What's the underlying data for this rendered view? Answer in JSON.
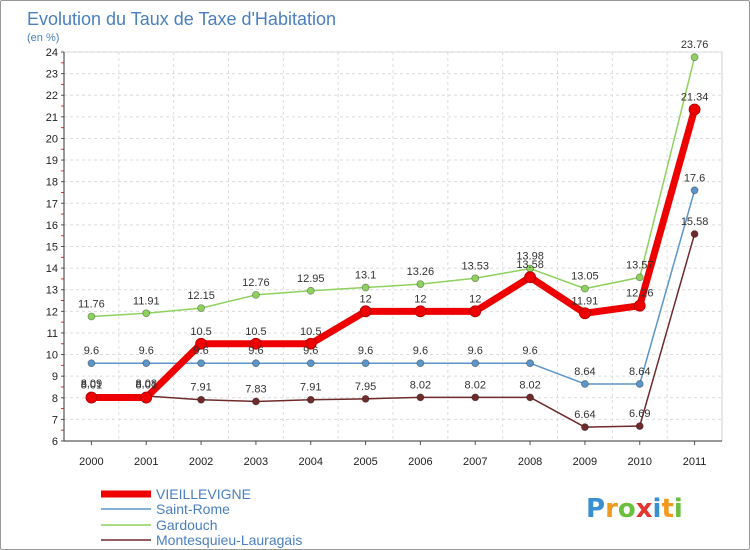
{
  "chart_data": {
    "type": "line",
    "title": "Evolution du Taux de Taxe d'Habitation",
    "subtitle": "(en %)",
    "xlabel": "",
    "ylabel": "",
    "categories": [
      "2000",
      "2001",
      "2002",
      "2003",
      "2004",
      "2005",
      "2006",
      "2007",
      "2008",
      "2009",
      "2010",
      "2011"
    ],
    "ylim": [
      6,
      24
    ],
    "yticks": [
      6,
      7,
      8,
      9,
      10,
      11,
      12,
      13,
      14,
      15,
      16,
      17,
      18,
      19,
      20,
      21,
      22,
      23,
      24
    ],
    "grid": true,
    "legend_position": "bottom-left",
    "series": [
      {
        "name": "VIEILLEVIGNE",
        "color": "#ee0000",
        "values": [
          8.01,
          8.01,
          10.5,
          10.5,
          10.5,
          12,
          12,
          12,
          13.58,
          11.91,
          12.26,
          21.34
        ],
        "labels": [
          "8.01",
          "8.01",
          "10.5",
          "10.5",
          "10.5",
          "12",
          "12",
          "12",
          "13.58",
          "11.91",
          "12.26",
          "21.34"
        ]
      },
      {
        "name": "Saint-Rome",
        "color": "#5b95c9",
        "values": [
          9.6,
          9.6,
          9.6,
          9.6,
          9.6,
          9.6,
          9.6,
          9.6,
          9.6,
          8.64,
          8.64,
          17.6
        ],
        "labels": [
          "9.6",
          "9.6",
          "9.6",
          "9.6",
          "9.6",
          "9.6",
          "9.6",
          "9.6",
          "9.6",
          "8.64",
          "8.64",
          "17.6"
        ]
      },
      {
        "name": "Gardouch",
        "color": "#8ed15d",
        "values": [
          11.76,
          11.91,
          12.15,
          12.76,
          12.95,
          13.1,
          13.26,
          13.53,
          13.98,
          13.05,
          13.57,
          23.76
        ],
        "labels": [
          "11.76",
          "11.91",
          "12.15",
          "12.76",
          "12.95",
          "13.1",
          "13.26",
          "13.53",
          "13.98",
          "13.05",
          "13.57",
          "23.76"
        ]
      },
      {
        "name": "Montesquieu-Lauragais",
        "color": "#6e2b2b",
        "values": [
          8.09,
          8.08,
          7.91,
          7.83,
          7.91,
          7.95,
          8.02,
          8.02,
          8.02,
          6.64,
          6.69,
          15.58
        ],
        "labels": [
          "8.09",
          "8.08",
          "7.91",
          "7.83",
          "7.91",
          "7.95",
          "8.02",
          "8.02",
          "8.02",
          "6.64",
          "6.69",
          "15.58"
        ]
      }
    ]
  },
  "brand": {
    "letters": [
      "P",
      "r",
      "o",
      "x",
      "i",
      "t",
      "i"
    ],
    "colors": [
      "#3a8fd0",
      "#f29a1f",
      "#6abf3f",
      "#e3342f",
      "#3a8fd0",
      "#f29a1f",
      "#6abf3f"
    ]
  }
}
